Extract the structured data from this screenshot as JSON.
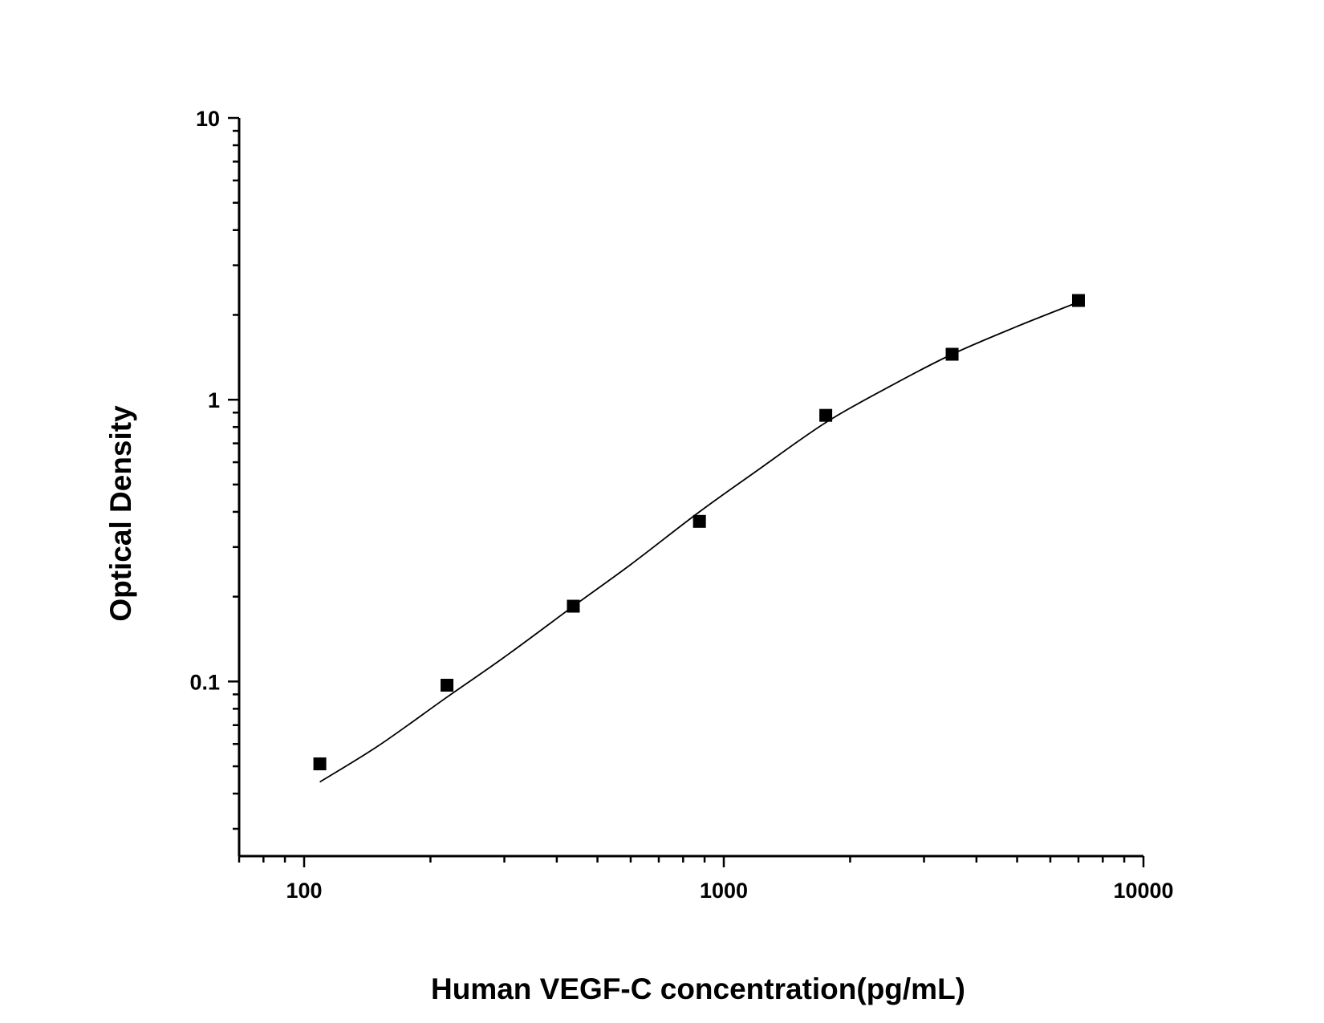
{
  "chart_data": {
    "type": "scatter",
    "xlabel": "Human VEGF-C concentration(pg/mL)",
    "ylabel": "Optical Density",
    "xscale": "log",
    "yscale": "log",
    "xlim": [
      70,
      10000
    ],
    "ylim": [
      0.024,
      10
    ],
    "x_ticks": [
      {
        "value": 100,
        "label": "100"
      },
      {
        "value": 1000,
        "label": "1000"
      },
      {
        "value": 10000,
        "label": "10000"
      }
    ],
    "y_ticks": [
      {
        "value": 0.1,
        "label": "0.1"
      },
      {
        "value": 1,
        "label": "1"
      },
      {
        "value": 10,
        "label": "10"
      }
    ],
    "grid": false,
    "legend": "none",
    "marker": "square",
    "color": "#000000",
    "series": [
      {
        "points": [
          {
            "x": 109,
            "y": 0.051
          },
          {
            "x": 219,
            "y": 0.097
          },
          {
            "x": 438,
            "y": 0.185
          },
          {
            "x": 875,
            "y": 0.37
          },
          {
            "x": 1750,
            "y": 0.88
          },
          {
            "x": 3500,
            "y": 1.45
          },
          {
            "x": 7000,
            "y": 2.25
          }
        ]
      }
    ],
    "fit_curve": {
      "points": [
        {
          "x": 109,
          "y": 0.044
        },
        {
          "x": 150,
          "y": 0.059
        },
        {
          "x": 219,
          "y": 0.088
        },
        {
          "x": 300,
          "y": 0.122
        },
        {
          "x": 438,
          "y": 0.185
        },
        {
          "x": 600,
          "y": 0.26
        },
        {
          "x": 875,
          "y": 0.4
        },
        {
          "x": 1200,
          "y": 0.56
        },
        {
          "x": 1750,
          "y": 0.83
        },
        {
          "x": 2500,
          "y": 1.12
        },
        {
          "x": 3500,
          "y": 1.45
        },
        {
          "x": 5000,
          "y": 1.82
        },
        {
          "x": 7000,
          "y": 2.22
        }
      ]
    }
  }
}
